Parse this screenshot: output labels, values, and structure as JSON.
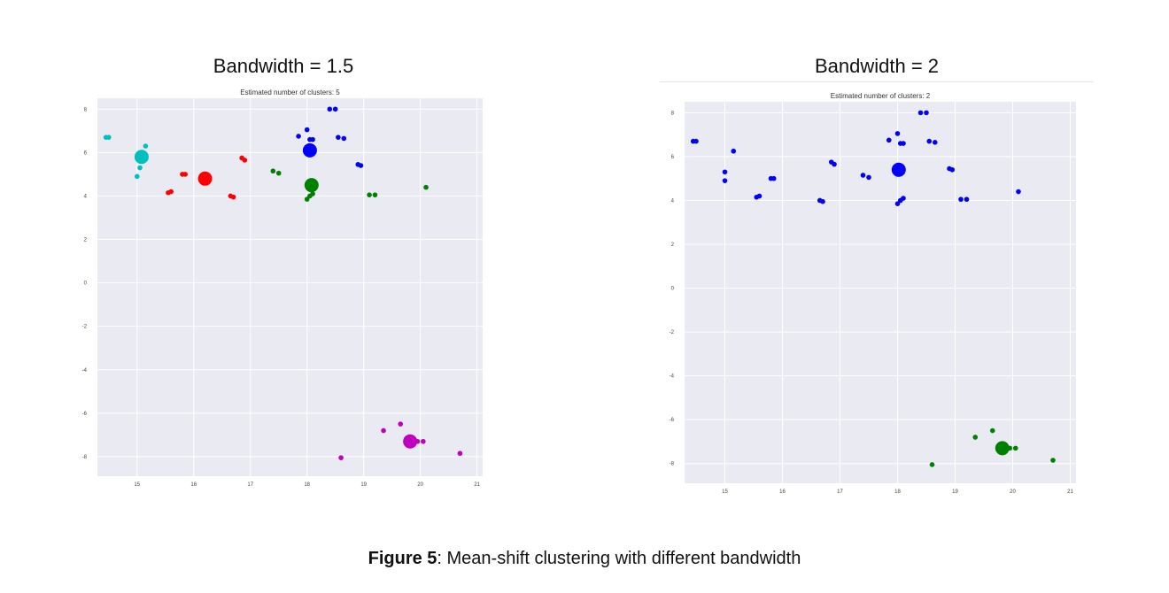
{
  "panels": {
    "left_title": "Bandwidth = 1.5",
    "right_title": "Bandwidth = 2"
  },
  "caption": {
    "label": "Figure 5",
    "text": ": Mean-shift clustering with different bandwidth"
  },
  "colors": {
    "background": "#eaeaf2",
    "grid": "#ffffff",
    "blue": "#0000ff",
    "green": "#008000",
    "red": "#ff0000",
    "cyan": "#00bfbf",
    "magenta": "#bf00bf"
  },
  "chart_data": [
    {
      "type": "scatter",
      "title": "Estimated number of clusters: 5",
      "xlim": [
        14.3,
        21.1
      ],
      "ylim": [
        -8.9,
        8.5
      ],
      "xticks": [
        15,
        16,
        17,
        18,
        19,
        20,
        21
      ],
      "yticks": [
        8,
        6,
        4,
        2,
        0,
        -2,
        -4,
        -6,
        -8
      ],
      "grid": true,
      "series": [
        {
          "color": "#00bfbf",
          "points": [
            [
              14.45,
              6.7
            ],
            [
              14.5,
              6.7
            ],
            [
              15.15,
              6.3
            ],
            [
              15.05,
              5.3
            ],
            [
              15.0,
              4.9
            ]
          ],
          "center": [
            15.08,
            5.8
          ]
        },
        {
          "color": "#ff0000",
          "points": [
            [
              15.55,
              4.15
            ],
            [
              15.6,
              4.2
            ],
            [
              15.8,
              5.0
            ],
            [
              15.85,
              5.0
            ],
            [
              16.65,
              4.0
            ],
            [
              16.7,
              3.95
            ],
            [
              16.85,
              5.75
            ],
            [
              16.9,
              5.65
            ]
          ],
          "center": [
            16.2,
            4.8
          ]
        },
        {
          "color": "#0000ff",
          "points": [
            [
              17.85,
              6.75
            ],
            [
              18.0,
              7.05
            ],
            [
              18.05,
              6.6
            ],
            [
              18.1,
              6.6
            ],
            [
              18.4,
              8.0
            ],
            [
              18.5,
              8.0
            ],
            [
              18.55,
              6.7
            ],
            [
              18.65,
              6.65
            ],
            [
              18.9,
              5.45
            ],
            [
              18.95,
              5.4
            ]
          ],
          "center": [
            18.05,
            6.1
          ]
        },
        {
          "color": "#008000",
          "points": [
            [
              17.4,
              5.15
            ],
            [
              17.5,
              5.05
            ],
            [
              18.0,
              3.85
            ],
            [
              18.05,
              4.0
            ],
            [
              18.1,
              4.1
            ],
            [
              19.1,
              4.05
            ],
            [
              19.2,
              4.05
            ],
            [
              20.1,
              4.4
            ]
          ],
          "center": [
            18.08,
            4.5
          ]
        },
        {
          "color": "#bf00bf",
          "points": [
            [
              18.6,
              -8.05
            ],
            [
              19.35,
              -6.8
            ],
            [
              19.65,
              -6.5
            ],
            [
              19.95,
              -7.3
            ],
            [
              20.05,
              -7.3
            ],
            [
              20.7,
              -7.85
            ]
          ],
          "center": [
            19.82,
            -7.3
          ]
        }
      ]
    },
    {
      "type": "scatter",
      "title": "Estimated number of clusters: 2",
      "xlim": [
        14.3,
        21.1
      ],
      "ylim": [
        -8.9,
        8.5
      ],
      "xticks": [
        15,
        16,
        17,
        18,
        19,
        20,
        21
      ],
      "yticks": [
        8,
        6,
        4,
        2,
        0,
        -2,
        -4,
        -6,
        -8
      ],
      "grid": true,
      "series": [
        {
          "color": "#0000ff",
          "points": [
            [
              14.45,
              6.7
            ],
            [
              14.5,
              6.7
            ],
            [
              15.15,
              6.25
            ],
            [
              15.0,
              5.3
            ],
            [
              15.0,
              4.9
            ],
            [
              15.55,
              4.15
            ],
            [
              15.6,
              4.2
            ],
            [
              15.8,
              5.0
            ],
            [
              15.85,
              5.0
            ],
            [
              16.65,
              4.0
            ],
            [
              16.7,
              3.95
            ],
            [
              16.85,
              5.75
            ],
            [
              16.9,
              5.65
            ],
            [
              17.4,
              5.15
            ],
            [
              17.5,
              5.05
            ],
            [
              17.85,
              6.75
            ],
            [
              18.0,
              7.05
            ],
            [
              18.05,
              6.6
            ],
            [
              18.1,
              6.6
            ],
            [
              18.0,
              3.85
            ],
            [
              18.05,
              4.0
            ],
            [
              18.1,
              4.1
            ],
            [
              18.4,
              8.0
            ],
            [
              18.5,
              8.0
            ],
            [
              18.55,
              6.7
            ],
            [
              18.65,
              6.65
            ],
            [
              18.9,
              5.45
            ],
            [
              18.95,
              5.4
            ],
            [
              19.1,
              4.05
            ],
            [
              19.2,
              4.05
            ],
            [
              20.1,
              4.4
            ]
          ],
          "center": [
            18.02,
            5.4
          ]
        },
        {
          "color": "#008000",
          "points": [
            [
              18.6,
              -8.05
            ],
            [
              19.35,
              -6.8
            ],
            [
              19.65,
              -6.5
            ],
            [
              19.95,
              -7.3
            ],
            [
              20.05,
              -7.3
            ],
            [
              20.7,
              -7.85
            ]
          ],
          "center": [
            19.82,
            -7.3
          ]
        }
      ]
    }
  ]
}
